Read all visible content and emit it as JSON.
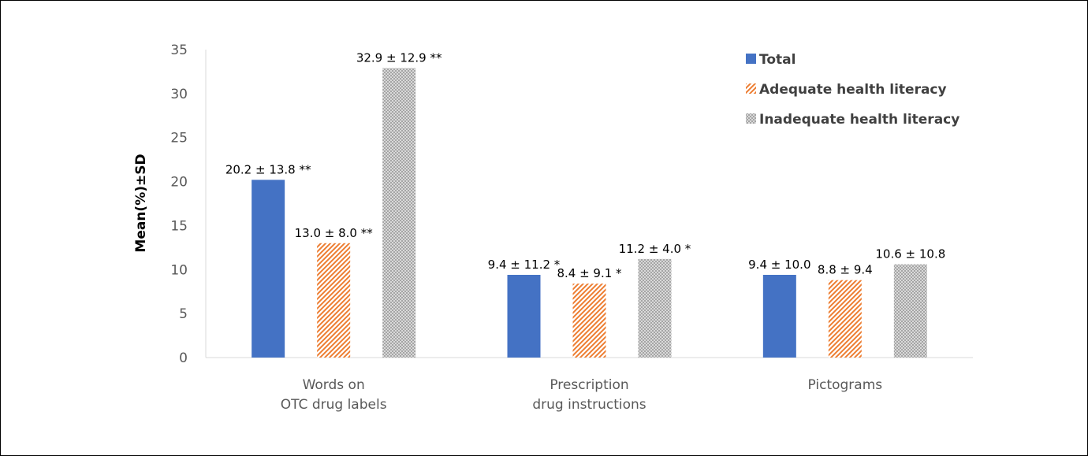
{
  "chart_data": {
    "type": "bar",
    "ylabel": "Mean(%)±SD",
    "xlabel": "",
    "title": "",
    "ylim": [
      0,
      35
    ],
    "yticks": [
      "0",
      "5",
      "10",
      "15",
      "20",
      "25",
      "30",
      "35"
    ],
    "grid": false,
    "legend_position": "top-right",
    "categories": [
      [
        "Words on",
        "OTC drug labels"
      ],
      [
        "Prescription",
        "drug instructions"
      ],
      [
        "Pictograms"
      ]
    ],
    "series": [
      {
        "name": "Total",
        "color": "#4472C4",
        "pattern": "solid",
        "values": [
          20.2,
          9.4,
          9.4
        ],
        "labels": [
          "20.2 ± 13.8 **",
          "9.4 ± 11.2 *",
          "9.4 ± 10.0"
        ]
      },
      {
        "name": "Adequate health literacy",
        "color": "#ED7D31",
        "pattern": "diagonal-stripes",
        "values": [
          13.0,
          8.4,
          8.8
        ],
        "labels": [
          "13.0 ± 8.0 **",
          "8.4 ± 9.1 *",
          "8.8 ± 9.4"
        ]
      },
      {
        "name": "Inadequate health literacy",
        "color": "#A5A5A5",
        "pattern": "dots",
        "values": [
          32.9,
          11.2,
          10.6
        ],
        "labels": [
          "32.9 ± 12.9 **",
          "11.2 ± 4.0 *",
          "10.6 ± 10.8"
        ]
      }
    ]
  }
}
